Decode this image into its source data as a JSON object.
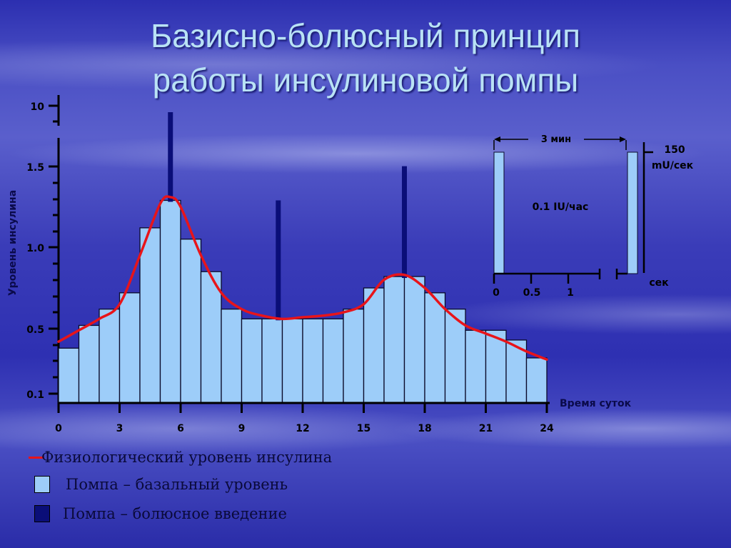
{
  "slide": {
    "title_line1": "Базисно-болюсный принцип",
    "title_line2": "работы инсулиновой помпы"
  },
  "colors": {
    "basal_bar": "#9dcdf9",
    "bolus_bar": "#0a0e78",
    "physiological_line": "#e8141a",
    "title_text": "#b9e2f5",
    "axis": "#000000"
  },
  "chart_data": {
    "type": "bar",
    "title": "Базисно-болюсный принцип работы инсулиновой помпы",
    "xlabel": "Время суток",
    "ylabel": "Уровень инсулина",
    "x_ticks": [
      "0",
      "3",
      "6",
      "9",
      "12",
      "15",
      "18",
      "21",
      "24"
    ],
    "y_ticks": [
      "0.1",
      "0.5",
      "1.0",
      "1.5",
      "10"
    ],
    "y_axis_broken": true,
    "xlim": [
      0,
      24
    ],
    "grid": false,
    "legend_position": "bottom-left",
    "categories": [
      "0",
      "1",
      "2",
      "3",
      "4",
      "5",
      "6",
      "7",
      "8",
      "9",
      "10",
      "11",
      "12",
      "13",
      "14",
      "15",
      "16",
      "17",
      "18",
      "19",
      "20",
      "21",
      "22",
      "23"
    ],
    "series": [
      {
        "name": "Помпа – базальный уровень",
        "kind": "bar",
        "values": [
          0.38,
          0.52,
          0.62,
          0.72,
          1.12,
          1.29,
          1.05,
          0.85,
          0.62,
          0.56,
          0.56,
          0.56,
          0.56,
          0.56,
          0.62,
          0.75,
          0.82,
          0.82,
          0.72,
          0.62,
          0.49,
          0.49,
          0.43,
          0.32
        ]
      },
      {
        "name": "Помпа – болюсное введение",
        "kind": "spike",
        "x": [
          5.5,
          10.8,
          17.0
        ],
        "values": [
          9.5,
          1.29,
          1.54
        ]
      },
      {
        "name": "Физиологический уровень инсулина",
        "kind": "line",
        "x": [
          0,
          1,
          2,
          3,
          4,
          5,
          5.5,
          6,
          7,
          8,
          9,
          10,
          11,
          12,
          13,
          14,
          15,
          16,
          17,
          18,
          19,
          20,
          21,
          22,
          23,
          24
        ],
        "values": [
          0.42,
          0.49,
          0.56,
          0.65,
          0.95,
          1.27,
          1.31,
          1.25,
          0.95,
          0.72,
          0.62,
          0.58,
          0.56,
          0.57,
          0.58,
          0.6,
          0.65,
          0.8,
          0.83,
          0.75,
          0.62,
          0.52,
          0.47,
          0.42,
          0.36,
          0.31
        ]
      }
    ]
  },
  "inset": {
    "span_label": "3 мин",
    "center_label": "0.1 IU/час",
    "rate_value": "150",
    "rate_unit": "mU/сек",
    "x_unit": "сек",
    "x_ticks": [
      "0",
      "0.5",
      "1"
    ]
  },
  "legend": {
    "items": [
      {
        "label": "Физиологический уровень инсулина",
        "kind": "line"
      },
      {
        "label": "Помпа – базальный уровень",
        "kind": "basal"
      },
      {
        "label": "Помпа – болюсное введение",
        "kind": "bolus"
      }
    ]
  }
}
